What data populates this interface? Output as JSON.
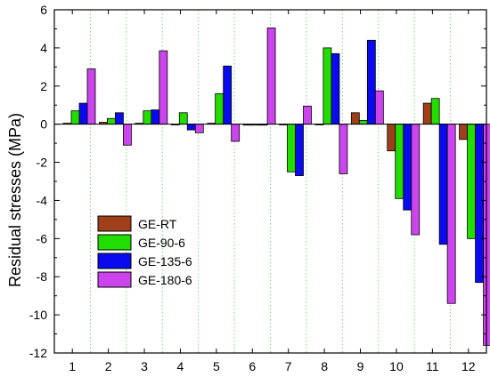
{
  "chart_data": {
    "type": "bar",
    "title": "",
    "xlabel": "",
    "ylabel": "Residual stresses (MPa)",
    "categories": [
      "1",
      "2",
      "3",
      "4",
      "5",
      "6",
      "7",
      "8",
      "9",
      "10",
      "11",
      "12"
    ],
    "ylim": [
      -12,
      6
    ],
    "yticks": [
      -12,
      -10,
      -8,
      -6,
      -4,
      -2,
      0,
      2,
      4,
      6
    ],
    "grid": "vertical dotted lines between categories",
    "legend_position": "lower-left",
    "series": [
      {
        "name": "GE-RT",
        "color": "#A0401A",
        "values": [
          0.05,
          0.1,
          0.05,
          0.0,
          0.05,
          -0.05,
          0.0,
          0.0,
          0.6,
          -1.4,
          1.1,
          -0.8
        ]
      },
      {
        "name": "GE-90-6",
        "color": "#22DD00",
        "values": [
          0.7,
          0.3,
          0.7,
          0.6,
          1.6,
          -0.05,
          -2.5,
          4.0,
          0.2,
          -3.9,
          1.35,
          -6.0
        ]
      },
      {
        "name": "GE-135-6",
        "color": "#0A0AEE",
        "values": [
          1.1,
          0.6,
          0.75,
          -0.3,
          3.05,
          -0.05,
          -2.7,
          3.7,
          4.4,
          -4.5,
          -6.3,
          -8.3
        ]
      },
      {
        "name": "GE-180-6",
        "color": "#CC44EE",
        "values": [
          2.9,
          -1.1,
          3.85,
          -0.45,
          -0.9,
          5.05,
          0.95,
          -2.6,
          1.75,
          -5.8,
          -9.4,
          -11.6
        ]
      }
    ]
  }
}
